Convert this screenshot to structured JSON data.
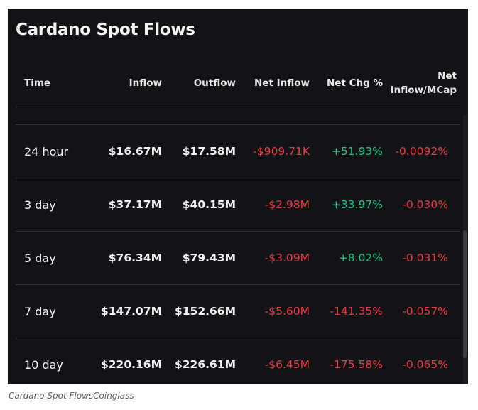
{
  "title": "Cardano Spot Flows",
  "caption": "Cardano Spot FlowsCoinglass",
  "colors": {
    "background": "#121316",
    "positive": "#16c784",
    "negative": "#ea3943",
    "text": "#f2f2f3",
    "divider": "#2e3036"
  },
  "columns": {
    "time": "Time",
    "inflow": "Inflow",
    "outflow": "Outflow",
    "net_inflow": "Net Inflow",
    "net_chg": "Net Chg %",
    "net_mcap_line1": "Net",
    "net_mcap_line2": "Inflow/MCap"
  },
  "rows": [
    {
      "time": "24 hour",
      "inflow": "$16.67M",
      "outflow": "$17.58M",
      "net_inflow": "-$909.71K",
      "net_chg": "+51.93%",
      "net_chg_sign": "positive",
      "net_mcap": "-0.0092%"
    },
    {
      "time": "3 day",
      "inflow": "$37.17M",
      "outflow": "$40.15M",
      "net_inflow": "-$2.98M",
      "net_chg": "+33.97%",
      "net_chg_sign": "positive",
      "net_mcap": "-0.030%"
    },
    {
      "time": "5 day",
      "inflow": "$76.34M",
      "outflow": "$79.43M",
      "net_inflow": "-$3.09M",
      "net_chg": "+8.02%",
      "net_chg_sign": "positive",
      "net_mcap": "-0.031%"
    },
    {
      "time": "7 day",
      "inflow": "$147.07M",
      "outflow": "$152.66M",
      "net_inflow": "-$5.60M",
      "net_chg": "-141.35%",
      "net_chg_sign": "negative",
      "net_mcap": "-0.057%"
    },
    {
      "time": "10 day",
      "inflow": "$220.16M",
      "outflow": "$226.61M",
      "net_inflow": "-$6.45M",
      "net_chg": "-175.58%",
      "net_chg_sign": "negative",
      "net_mcap": "-0.065%"
    }
  ]
}
